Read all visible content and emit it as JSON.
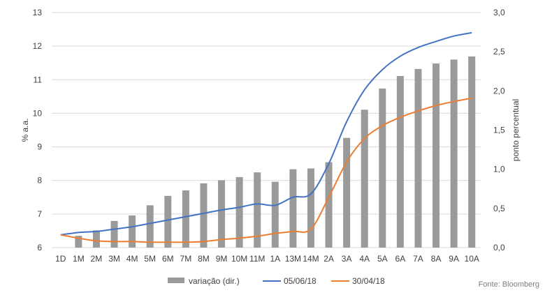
{
  "chart_data": {
    "type": "bar+line",
    "categories": [
      "1D",
      "1M",
      "2M",
      "3M",
      "4M",
      "5M",
      "6M",
      "7M",
      "8M",
      "9M",
      "10M",
      "11M",
      "1A",
      "13M",
      "14M",
      "2A",
      "3A",
      "4A",
      "5A",
      "6A",
      "7A",
      "8A",
      "9A",
      "10A"
    ],
    "bar_series": {
      "name": "variação (dir.)",
      "axis": "right",
      "color": "#9a9a9a",
      "values": [
        0.0,
        0.15,
        0.22,
        0.34,
        0.41,
        0.54,
        0.66,
        0.73,
        0.82,
        0.86,
        0.9,
        0.96,
        0.84,
        1.0,
        1.01,
        1.09,
        1.4,
        1.76,
        2.03,
        2.19,
        2.28,
        2.35,
        2.4,
        2.44
      ]
    },
    "series": [
      {
        "name": "05/06/18",
        "axis": "left",
        "color": "#4472c4",
        "values": [
          6.38,
          6.45,
          6.48,
          6.55,
          6.62,
          6.72,
          6.82,
          6.92,
          7.02,
          7.12,
          7.2,
          7.3,
          7.26,
          7.5,
          7.6,
          8.5,
          9.75,
          10.7,
          11.3,
          11.7,
          11.96,
          12.14,
          12.3,
          12.4
        ]
      },
      {
        "name": "30/04/18",
        "axis": "left",
        "color": "#ed7d31",
        "values": [
          6.38,
          6.28,
          6.2,
          6.18,
          6.18,
          6.16,
          6.16,
          6.16,
          6.18,
          6.24,
          6.28,
          6.34,
          6.42,
          6.48,
          6.55,
          7.5,
          8.55,
          9.25,
          9.63,
          9.88,
          10.07,
          10.23,
          10.35,
          10.45
        ]
      }
    ],
    "y_left": {
      "label": "% a.a.",
      "ylim": [
        6,
        13
      ],
      "ticks": [
        "6",
        "7",
        "8",
        "9",
        "10",
        "11",
        "12",
        "13"
      ]
    },
    "y_right": {
      "label": "ponto percentual",
      "ylim": [
        0,
        3
      ],
      "ticks": [
        "0,0",
        "0,5",
        "1,0",
        "1,5",
        "2,0",
        "2,5",
        "3,0"
      ]
    },
    "grid": true,
    "legend_position": "bottom"
  },
  "source": "Fonte: Bloomberg"
}
